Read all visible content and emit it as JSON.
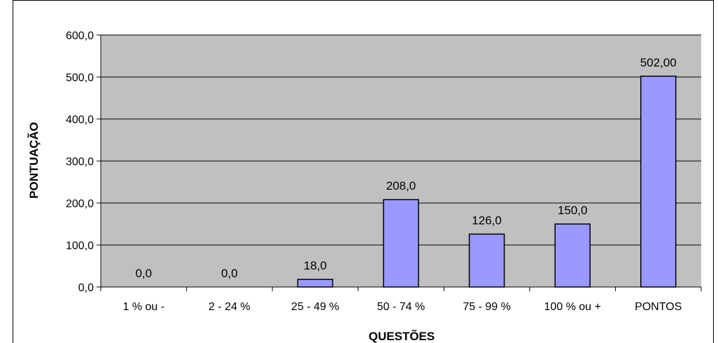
{
  "chart_data": {
    "type": "bar",
    "title": "",
    "xlabel": "QUESTÕES",
    "ylabel": "PONTUAÇÃO",
    "categories": [
      "1 % ou -",
      "2 - 24 %",
      "25 - 49 %",
      "50 - 74 %",
      "75 - 99 %",
      "100 % ou +",
      "PONTOS"
    ],
    "values": [
      0,
      0,
      18,
      208,
      126,
      150,
      502
    ],
    "data_labels": [
      "0,0",
      "0,0",
      "18,0",
      "208,0",
      "126,0",
      "150,0",
      "502,00"
    ],
    "ylim": [
      0,
      600
    ],
    "yticks": [
      0,
      100,
      200,
      300,
      400,
      500,
      600
    ],
    "ytick_labels": [
      "0,0",
      "100,0",
      "200,0",
      "300,0",
      "400,0",
      "500,0",
      "600,0"
    ],
    "grid": true,
    "legend": false,
    "colors": {
      "plot_background": "#C0C0C0",
      "bar_fill": "#9999FF",
      "bar_stroke": "#000000",
      "gridline": "#000000"
    }
  }
}
